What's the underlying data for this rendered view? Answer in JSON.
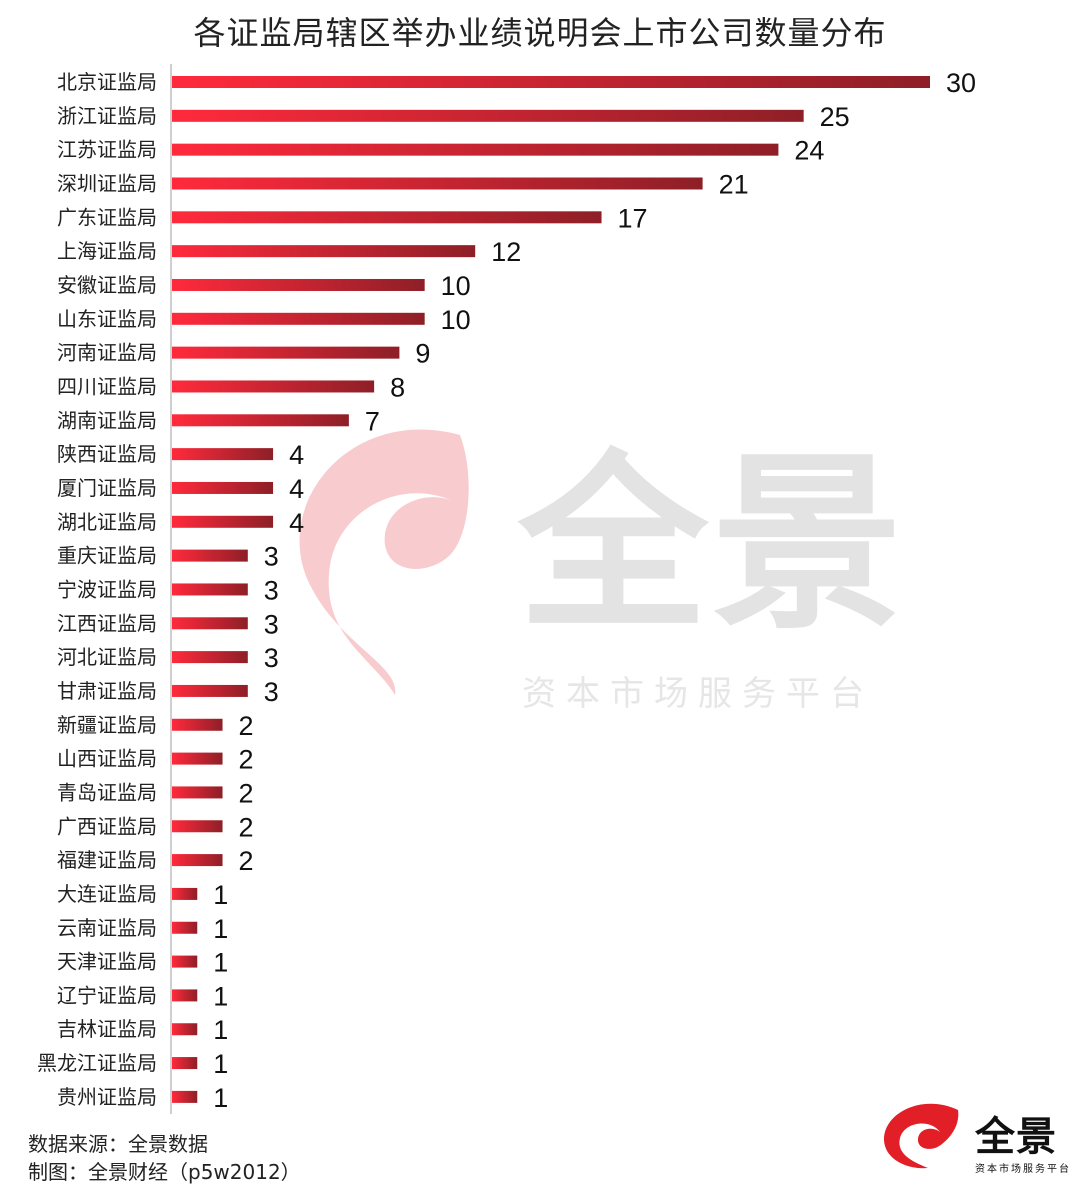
{
  "chart_data": {
    "type": "bar",
    "orientation": "horizontal",
    "title": "各证监局辖区举办业绩说明会上市公司数量分布",
    "categories": [
      "北京证监局",
      "浙江证监局",
      "江苏证监局",
      "深圳证监局",
      "广东证监局",
      "上海证监局",
      "安徽证监局",
      "山东证监局",
      "河南证监局",
      "四川证监局",
      "湖南证监局",
      "陕西证监局",
      "厦门证监局",
      "湖北证监局",
      "重庆证监局",
      "宁波证监局",
      "江西证监局",
      "河北证监局",
      "甘肃证监局",
      "新疆证监局",
      "山西证监局",
      "青岛证监局",
      "广西证监局",
      "福建证监局",
      "大连证监局",
      "云南证监局",
      "天津证监局",
      "辽宁证监局",
      "吉林证监局",
      "黑龙江证监局",
      "贵州证监局"
    ],
    "values": [
      30,
      25,
      24,
      21,
      17,
      12,
      10,
      10,
      9,
      8,
      7,
      4,
      4,
      4,
      3,
      3,
      3,
      3,
      3,
      2,
      2,
      2,
      2,
      2,
      1,
      1,
      1,
      1,
      1,
      1,
      1
    ],
    "data_labels": true,
    "grid": false,
    "colors": {
      "bar_start": "#ff2a3c",
      "bar_end": "#8e1f27"
    }
  },
  "watermark": {
    "name": "全景",
    "tagline": "资本市场服务平台"
  },
  "footer": {
    "source": "数据来源：全景数据",
    "maker": "制图：全景财经（p5w2012）"
  },
  "logo": {
    "name": "全景",
    "tagline": "资本市场服务平台",
    "color": "#e21f26"
  }
}
